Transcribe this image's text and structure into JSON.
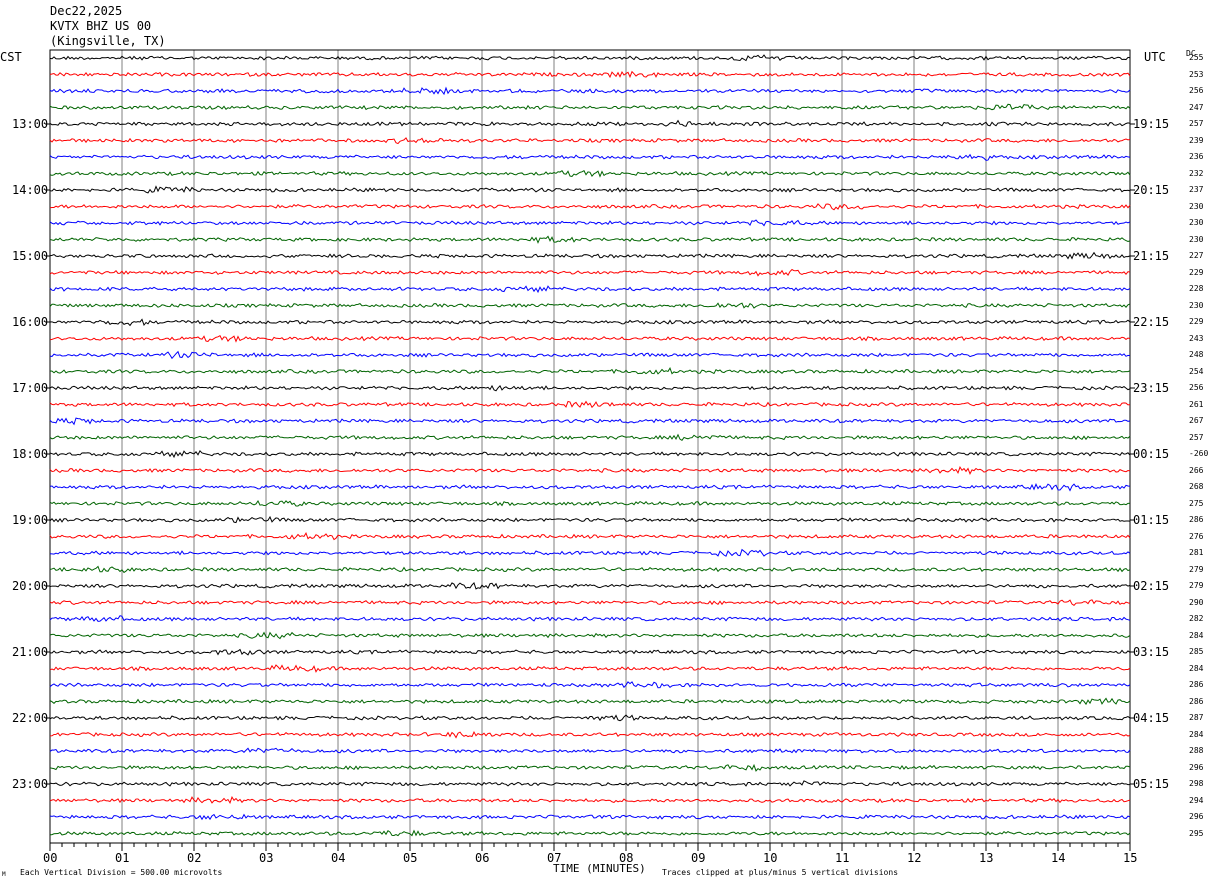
{
  "header": {
    "date": "Dec22,2025",
    "station": "KVTX BHZ US 00",
    "location": "(Kingsville, TX)"
  },
  "left_timezone": "CST",
  "right_timezone": "UTC",
  "dc_label": "DC",
  "footer": {
    "scale_note": "Each Vertical Division =  500.00 microvolts",
    "clip_note": "Traces clipped at plus/minus 5 vertical divisions",
    "corner_mark": "M"
  },
  "chart_data": {
    "type": "line",
    "xlabel": "TIME (MINUTES)",
    "xlim": [
      0,
      15
    ],
    "x_ticks": [
      "00",
      "01",
      "02",
      "03",
      "04",
      "05",
      "06",
      "07",
      "08",
      "09",
      "10",
      "11",
      "12",
      "13",
      "14",
      "15"
    ],
    "trace_colors": [
      "#000000",
      "#ff0000",
      "#0000ff",
      "#006400"
    ],
    "left_hour_labels": [
      "13:00",
      "14:00",
      "15:00",
      "16:00",
      "17:00",
      "18:00",
      "19:00",
      "20:00",
      "21:00",
      "22:00",
      "23:00"
    ],
    "right_hour_labels": [
      "19:15",
      "20:15",
      "21:15",
      "22:15",
      "23:15",
      "00:15",
      "01:15",
      "02:15",
      "03:15",
      "04:15",
      "05:15"
    ],
    "trace_dc_values": [
      "255",
      "253",
      "256",
      "247",
      "257",
      "239",
      "236",
      "232",
      "237",
      "230",
      "230",
      "230",
      "227",
      "229",
      "228",
      "230",
      "229",
      "243",
      "248",
      "254",
      "256",
      "261",
      "267",
      "257",
      "-260",
      "266",
      "268",
      "275",
      "286",
      "276",
      "281",
      "279",
      "279",
      "290",
      "282",
      "284",
      "285",
      "284",
      "286",
      "286",
      "287",
      "284",
      "288",
      "296",
      "298",
      "294",
      "296",
      "295"
    ]
  }
}
